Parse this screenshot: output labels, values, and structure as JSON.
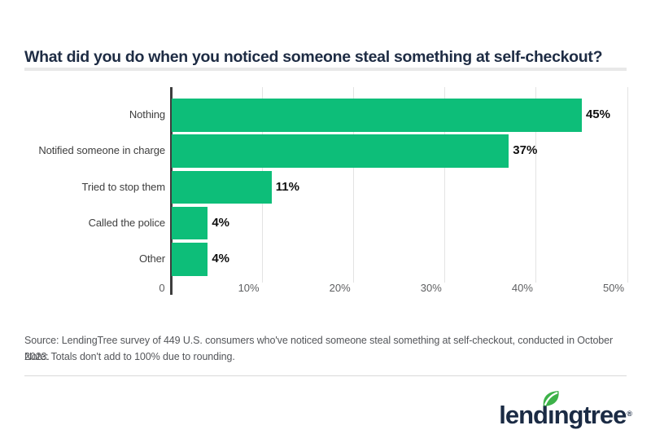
{
  "title": "What did you do when you noticed someone steal something at self-checkout?",
  "chart_data": {
    "type": "bar",
    "orientation": "horizontal",
    "title": "What did you do when you noticed someone steal something at self-checkout?",
    "categories": [
      "Nothing",
      "Notified someone in charge",
      "Tried to stop them",
      "Called the police",
      "Other"
    ],
    "values": [
      45,
      37,
      11,
      4,
      4
    ],
    "value_labels": [
      "45%",
      "37%",
      "11%",
      "4%",
      "4%"
    ],
    "xlim": [
      0,
      50
    ],
    "x_ticks": [
      "0",
      "10%",
      "20%",
      "30%",
      "40%",
      "50%"
    ],
    "grid": true,
    "legend": "none",
    "bar_color": "#0dbe79",
    "gridline_color": "#e3e3e3",
    "axis_color": "#3d3d3d"
  },
  "footer": {
    "source": "Source: LendingTree survey of 449 U.S. consumers who've noticed someone steal something at self-checkout, conducted in October 2023.",
    "note": "Note: Totals don't add to 100% due to rounding."
  },
  "logo": {
    "brand": "lendingtree",
    "wordmark_before_leaf": "lend",
    "wordmark_dotless_i": "ı",
    "wordmark_after_leaf": "ngtree",
    "registered_mark": "®",
    "leaf_icon": "leaf-icon"
  },
  "colors": {
    "accent_green": "#0dbe79",
    "leaf_green": "#3db249",
    "brand_navy": "#1b2b44",
    "title_navy": "#1e2c44",
    "divider_gray": "#e8e8e8",
    "text_gray": "#54565a"
  }
}
